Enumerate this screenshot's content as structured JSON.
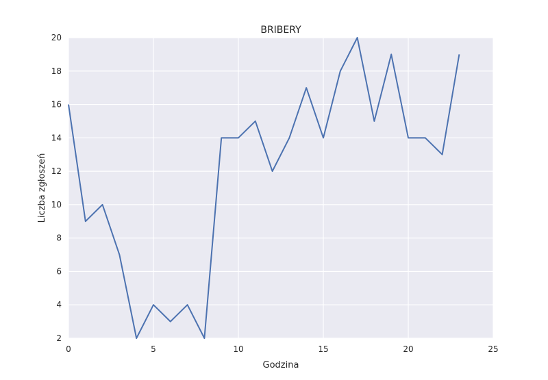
{
  "chart_data": {
    "type": "line",
    "title": "BRIBERY",
    "xlabel": "Godzina",
    "ylabel": "Liczba zgłoszeń",
    "xlim": [
      0,
      25
    ],
    "ylim": [
      2,
      20
    ],
    "xticks": [
      0,
      5,
      10,
      15,
      20,
      25
    ],
    "yticks": [
      2,
      4,
      6,
      8,
      10,
      12,
      14,
      16,
      18,
      20
    ],
    "grid": true,
    "background": "#eaeaf2",
    "line_color": "#4c72b0",
    "series": [
      {
        "x": [
          0,
          1,
          2,
          3,
          4,
          5,
          6,
          7,
          8,
          9,
          10,
          11,
          12,
          13,
          14,
          15,
          16,
          17,
          18,
          19,
          20,
          21,
          22,
          23
        ],
        "values": [
          16,
          9,
          10,
          7,
          2,
          4,
          3,
          4,
          2,
          14,
          14,
          15,
          12,
          14,
          17,
          14,
          18,
          20,
          15,
          19,
          14,
          14,
          13,
          19
        ]
      }
    ]
  }
}
